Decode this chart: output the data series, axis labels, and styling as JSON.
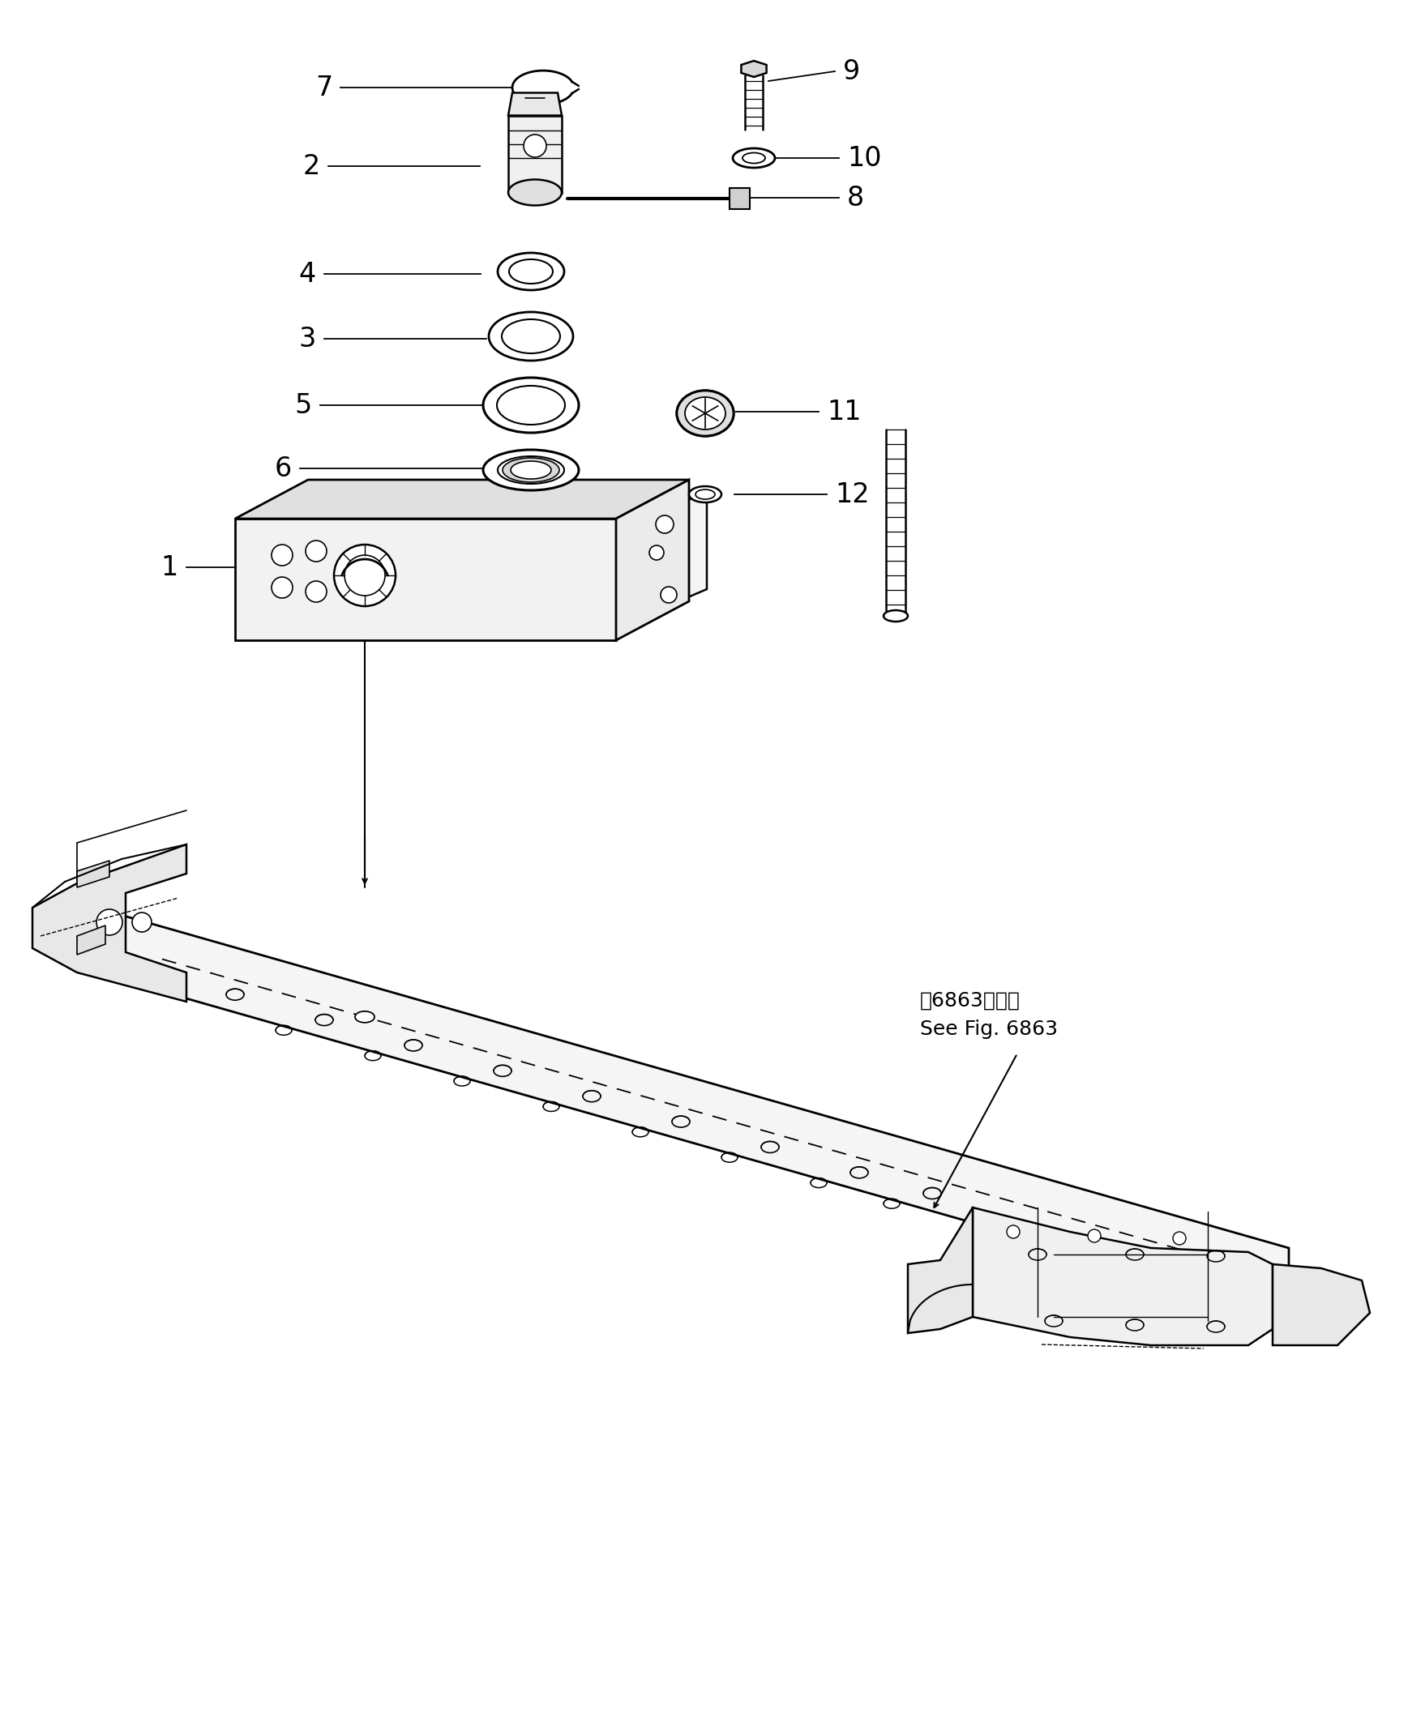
{
  "bg": "#ffffff",
  "lc": "#000000",
  "fig_w": 17.37,
  "fig_h": 21.15,
  "see_fig_ja": "第6863図参照",
  "see_fig_en": "See Fig. 6863"
}
